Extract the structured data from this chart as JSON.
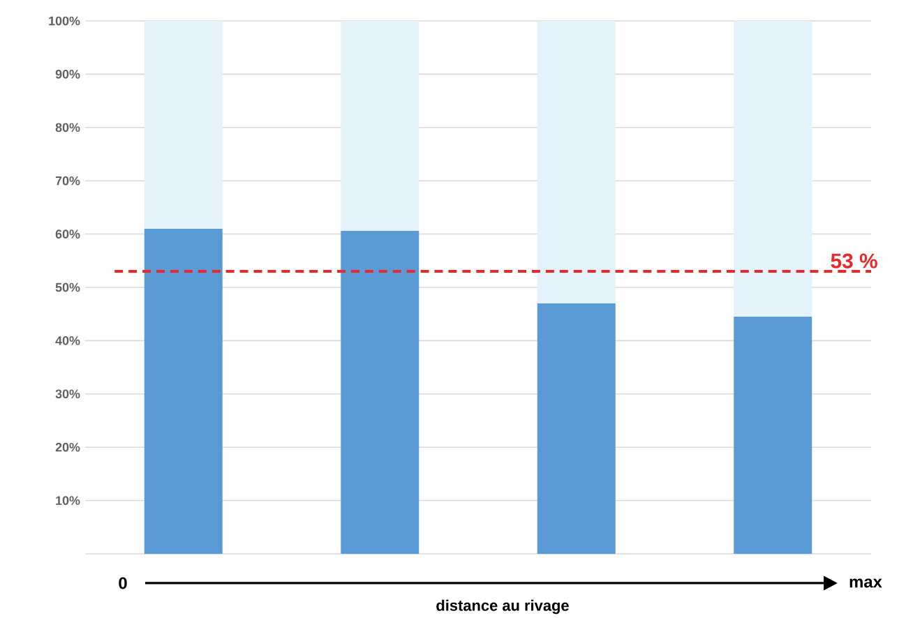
{
  "chart_data": {
    "type": "bar",
    "stacked": true,
    "categories": [
      null,
      null,
      null,
      null
    ],
    "series": [
      {
        "color": "#5b9bd5",
        "values": [
          61,
          60.6,
          47,
          44.5
        ]
      },
      {
        "color": "#e4f2fc",
        "values": [
          39,
          39.4,
          53,
          55.5
        ]
      }
    ],
    "ylim": [
      0,
      100
    ],
    "yticks": [
      {
        "value": 0,
        "label": null
      },
      {
        "value": 10,
        "label": "10%"
      },
      {
        "value": 20,
        "label": "20%"
      },
      {
        "value": 30,
        "label": "30%"
      },
      {
        "value": 40,
        "label": "40%"
      },
      {
        "value": 50,
        "label": "50%"
      },
      {
        "value": 60,
        "label": "60%"
      },
      {
        "value": 70,
        "label": "70%"
      },
      {
        "value": 80,
        "label": "80%"
      },
      {
        "value": 90,
        "label": "90%"
      },
      {
        "value": 100,
        "label": "100%"
      }
    ],
    "grid": "y",
    "ref_lines": [
      {
        "axis": "y",
        "value": 53,
        "label": "53 %",
        "color": "#e8282b",
        "line_style": "dashed"
      }
    ],
    "xlabel": "distance au rivage",
    "annotations": [
      "0",
      "max"
    ]
  }
}
